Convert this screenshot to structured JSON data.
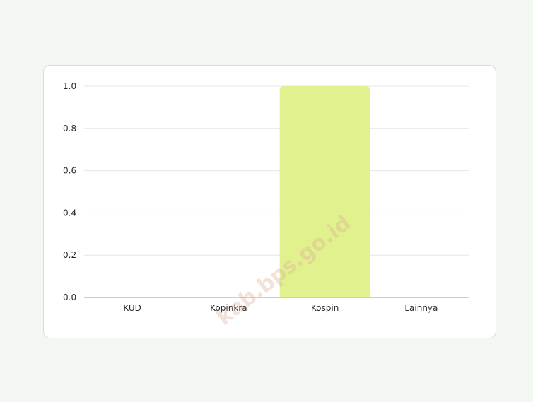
{
  "chart_data": {
    "type": "bar",
    "categories": [
      "KUD",
      "Kopinkra",
      "Kospin",
      "Lainnya"
    ],
    "values": [
      0,
      0,
      1,
      0
    ],
    "ylim": [
      0,
      1
    ],
    "yticks": [
      "0.0",
      "0.2",
      "0.4",
      "0.6",
      "0.8",
      "1.0"
    ],
    "grid": true,
    "bar_color": "#e0f18e",
    "grid_color": "#e4e8e4",
    "axis_color": "#9a9a9a"
  },
  "watermark": "kab.bps.go.id"
}
